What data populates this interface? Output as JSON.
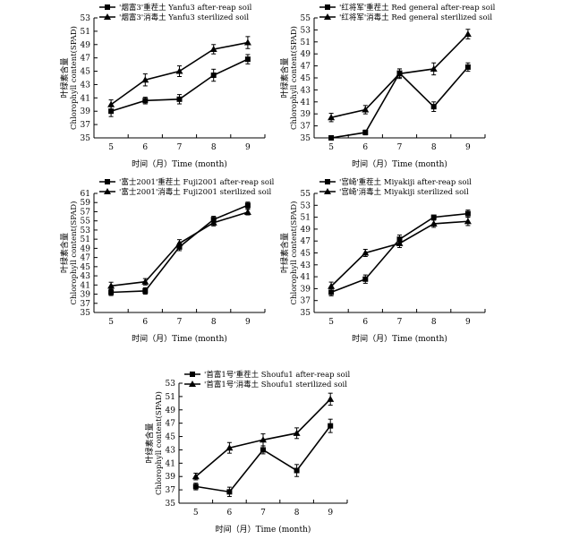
{
  "chart_data": [
    {
      "type": "line",
      "categories": [
        "5",
        "6",
        "7",
        "8",
        "9"
      ],
      "xlabel": "时间（月）Time (month)",
      "ylabel_cn": "叶绿素含量",
      "ylabel_en": "Chlorophyll content(SPAD)",
      "ylim": [
        35,
        53
      ],
      "yticks": [
        "35",
        "37",
        "39",
        "41",
        "43",
        "45",
        "47",
        "49",
        "51",
        "53"
      ],
      "series": [
        {
          "name": "'烟富3'重茬土 Yanfu3 after-reap soil",
          "marker": "square",
          "values": [
            39.0,
            40.6,
            40.8,
            44.4,
            46.8
          ],
          "errors": [
            0.8,
            0.5,
            0.7,
            0.9,
            0.7
          ]
        },
        {
          "name": "'烟富3'消毒土 Yanfu3 sterilized soil",
          "marker": "triangle",
          "values": [
            40.0,
            43.7,
            45.0,
            48.3,
            49.3
          ],
          "errors": [
            0.7,
            0.9,
            0.8,
            0.7,
            0.9
          ]
        }
      ]
    },
    {
      "type": "line",
      "categories": [
        "5",
        "6",
        "7",
        "8",
        "9"
      ],
      "xlabel": "时间（月）Time (month)",
      "ylabel_cn": "叶绿素含量",
      "ylabel_en": "Chlorophyll content(SPAD)",
      "ylim": [
        35,
        55
      ],
      "yticks": [
        "35",
        "37",
        "39",
        "41",
        "43",
        "45",
        "47",
        "49",
        "51",
        "53",
        "55"
      ],
      "series": [
        {
          "name": "'红将军'重茬土 Red general after-reap soil",
          "marker": "square",
          "values": [
            35.0,
            35.9,
            45.8,
            40.2,
            46.8
          ],
          "errors": [
            0.2,
            0.4,
            0.7,
            0.8,
            0.7
          ]
        },
        {
          "name": "'红将军'消毒土 Red general sterilized soil",
          "marker": "triangle",
          "values": [
            38.4,
            39.7,
            45.7,
            46.5,
            52.3
          ],
          "errors": [
            0.7,
            0.7,
            0.8,
            1.0,
            0.8
          ]
        }
      ]
    },
    {
      "type": "line",
      "categories": [
        "5",
        "6",
        "7",
        "8",
        "9"
      ],
      "xlabel": "时间（月）Time (month)",
      "ylabel_cn": "叶绿素含量",
      "ylabel_en": "Chlorophyll content(SPAD)",
      "ylim": [
        35,
        61
      ],
      "yticks": [
        "35",
        "37",
        "39",
        "41",
        "43",
        "45",
        "47",
        "49",
        "51",
        "53",
        "55",
        "57",
        "59",
        "61"
      ],
      "series": [
        {
          "name": "'富士2001'重茬土 Fuji2001 after-reap soil",
          "marker": "square",
          "values": [
            39.4,
            39.7,
            49.3,
            55.3,
            58.4
          ],
          "errors": [
            0.7,
            0.7,
            0.8,
            0.7,
            0.7
          ]
        },
        {
          "name": "'富士2001'消毒土 Fuji2001 sterilized soil",
          "marker": "triangle",
          "values": [
            40.8,
            41.7,
            50.1,
            54.6,
            56.9
          ],
          "errors": [
            0.8,
            0.7,
            0.8,
            0.7,
            0.6
          ]
        }
      ]
    },
    {
      "type": "line",
      "categories": [
        "5",
        "6",
        "7",
        "8",
        "9"
      ],
      "xlabel": "时间（月）Time (month)",
      "ylabel_cn": "叶绿素含量",
      "ylabel_en": "Chlorophyll content(SPAD)",
      "ylim": [
        35,
        55
      ],
      "yticks": [
        "35",
        "37",
        "39",
        "41",
        "43",
        "45",
        "47",
        "49",
        "51",
        "53",
        "55"
      ],
      "series": [
        {
          "name": "'宫崎'重茬土 Miyakiji after-reap soil",
          "marker": "square",
          "values": [
            38.4,
            40.6,
            47.3,
            51.0,
            51.6
          ],
          "errors": [
            0.6,
            0.7,
            0.7,
            0.3,
            0.6
          ]
        },
        {
          "name": "'宫崎'消毒土 Miyakiji sterilized soil",
          "marker": "triangle",
          "values": [
            39.4,
            45.0,
            46.6,
            49.9,
            50.3
          ],
          "errors": [
            0.7,
            0.6,
            0.7,
            0.6,
            0.7
          ]
        }
      ]
    },
    {
      "type": "line",
      "categories": [
        "5",
        "6",
        "7",
        "8",
        "9"
      ],
      "xlabel": "时间（月）Time (month)",
      "ylabel_cn": "叶绿素含量",
      "ylabel_en": "Chlorophyll content(SPAD)",
      "ylim": [
        35,
        53
      ],
      "yticks": [
        "35",
        "37",
        "39",
        "41",
        "43",
        "45",
        "47",
        "49",
        "51",
        "53"
      ],
      "series": [
        {
          "name": "'首富1号'重茬土 Shoufu1 after-reap soil",
          "marker": "square",
          "values": [
            37.5,
            36.7,
            43.0,
            39.9,
            46.6
          ],
          "errors": [
            0.5,
            0.7,
            0.6,
            0.9,
            1.0
          ]
        },
        {
          "name": "'首富1号'消毒土 Shoufu1 sterilized soil",
          "marker": "triangle",
          "values": [
            39.0,
            43.3,
            44.5,
            45.5,
            50.6
          ],
          "errors": [
            0.5,
            0.8,
            0.9,
            0.8,
            0.9
          ]
        }
      ]
    }
  ]
}
